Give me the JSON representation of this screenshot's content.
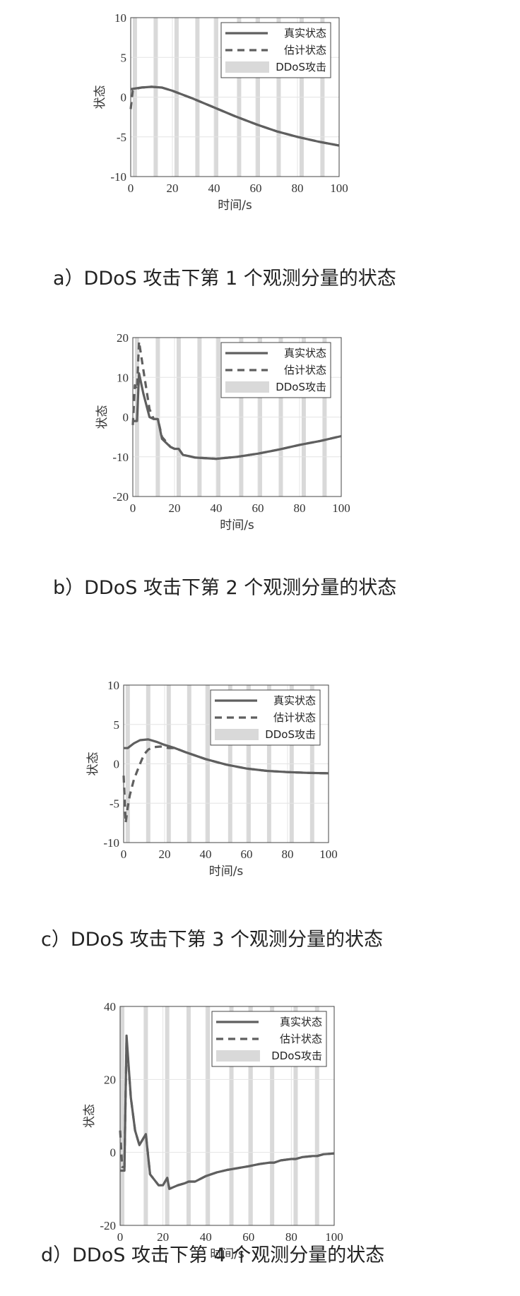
{
  "chart_data": [
    {
      "type": "line",
      "caption": "a）DDoS 攻击下第 1 个观测分量的状态",
      "xlabel": "时间/s",
      "ylabel": "状态",
      "xlim": [
        0,
        100
      ],
      "ylim": [
        -10,
        10
      ],
      "xticks": [
        "0",
        "20",
        "40",
        "60",
        "80",
        "100"
      ],
      "yticks": [
        "10",
        "5",
        "0",
        "-5",
        "-10"
      ],
      "legend": {
        "position": "top-right",
        "entries": [
          "真实状态",
          "估计状态",
          "DDoS攻击"
        ]
      },
      "attack_times": [
        2,
        12,
        22,
        32,
        41,
        52,
        61,
        71,
        82,
        92
      ],
      "series": [
        {
          "name": "真实状态",
          "style": "solid",
          "x": [
            0,
            5,
            10,
            15,
            20,
            30,
            40,
            50,
            60,
            70,
            80,
            90,
            100
          ],
          "y": [
            1.0,
            1.2,
            1.3,
            1.2,
            0.8,
            -0.2,
            -1.3,
            -2.4,
            -3.4,
            -4.3,
            -5.0,
            -5.6,
            -6.1
          ]
        },
        {
          "name": "估计状态",
          "style": "dashed",
          "x": [
            0,
            1,
            2,
            5,
            10,
            15,
            20,
            30,
            40,
            50,
            60,
            70,
            80,
            90,
            100
          ],
          "y": [
            -1.5,
            0.8,
            1.0,
            1.2,
            1.3,
            1.2,
            0.8,
            -0.2,
            -1.3,
            -2.4,
            -3.4,
            -4.3,
            -5.0,
            -5.6,
            -6.1
          ]
        }
      ]
    },
    {
      "type": "line",
      "caption": "b）DDoS 攻击下第 2 个观测分量的状态",
      "xlabel": "时间/s",
      "ylabel": "状态",
      "xlim": [
        0,
        100
      ],
      "ylim": [
        -20,
        20
      ],
      "xticks": [
        "0",
        "20",
        "40",
        "60",
        "80",
        "100"
      ],
      "yticks": [
        "20",
        "10",
        "0",
        "-10",
        "-20"
      ],
      "legend": {
        "position": "top-right",
        "entries": [
          "真实状态",
          "估计状态",
          "DDoS攻击"
        ]
      },
      "attack_times": [
        2,
        12,
        22,
        32,
        41,
        52,
        61,
        71,
        82,
        92
      ],
      "series": [
        {
          "name": "真实状态",
          "style": "solid",
          "x": [
            0,
            2,
            3,
            5,
            8,
            10,
            12,
            14,
            18,
            20,
            22,
            24,
            30,
            40,
            50,
            60,
            70,
            80,
            90,
            100
          ],
          "y": [
            -1.0,
            -1.0,
            11.0,
            6.0,
            0.0,
            -0.5,
            -0.5,
            -5.5,
            -7.5,
            -8.0,
            -8.0,
            -9.5,
            -10.2,
            -10.5,
            -10.0,
            -9.2,
            -8.2,
            -7.0,
            -6.0,
            -4.8
          ]
        },
        {
          "name": "估计状态",
          "style": "dashed",
          "x": [
            0,
            1,
            2,
            3,
            5,
            8,
            10,
            12,
            14,
            18,
            20,
            22,
            24,
            30,
            40,
            50,
            60,
            70,
            80,
            90,
            100
          ],
          "y": [
            -2.0,
            8.0,
            7.0,
            19.0,
            12.0,
            2.0,
            -0.5,
            -0.5,
            -5.0,
            -7.5,
            -8.0,
            -8.0,
            -9.5,
            -10.2,
            -10.5,
            -10.0,
            -9.2,
            -8.2,
            -7.0,
            -6.0,
            -4.8
          ]
        }
      ]
    },
    {
      "type": "line",
      "caption": "c）DDoS 攻击下第 3 个观测分量的状态",
      "xlabel": "时间/s",
      "ylabel": "状态",
      "xlim": [
        0,
        100
      ],
      "ylim": [
        -10,
        10
      ],
      "xticks": [
        "0",
        "20",
        "40",
        "60",
        "80",
        "100"
      ],
      "yticks": [
        "10",
        "5",
        "0",
        "-5",
        "-10"
      ],
      "legend": {
        "position": "top-right",
        "entries": [
          "真实状态",
          "估计状态",
          "DDoS攻击"
        ]
      },
      "attack_times": [
        2,
        12,
        22,
        32,
        41,
        52,
        61,
        71,
        82,
        92
      ],
      "series": [
        {
          "name": "真实状态",
          "style": "solid",
          "x": [
            0,
            2,
            5,
            8,
            12,
            16,
            20,
            25,
            30,
            40,
            50,
            60,
            70,
            80,
            90,
            100
          ],
          "y": [
            2.0,
            2.0,
            2.6,
            3.0,
            3.1,
            2.8,
            2.4,
            2.0,
            1.5,
            0.6,
            -0.1,
            -0.6,
            -0.9,
            -1.05,
            -1.15,
            -1.2
          ]
        },
        {
          "name": "估计状态",
          "style": "dashed",
          "x": [
            0,
            1,
            2,
            3,
            5,
            8,
            10,
            12,
            14,
            18,
            22,
            25,
            30,
            40,
            50,
            60,
            70,
            80,
            90,
            100
          ],
          "y": [
            -1.5,
            -7.5,
            -5.5,
            -4.0,
            -2.0,
            0.0,
            1.2,
            1.8,
            2.1,
            2.2,
            2.0,
            2.0,
            1.5,
            0.6,
            -0.1,
            -0.6,
            -0.9,
            -1.05,
            -1.15,
            -1.2
          ]
        }
      ]
    },
    {
      "type": "line",
      "caption": "d）DDoS 攻击下第 4 个观测分量的状态",
      "xlabel": "时间/s",
      "ylabel": "状态",
      "xlim": [
        0,
        100
      ],
      "ylim": [
        -20,
        40
      ],
      "xticks": [
        "0",
        "20",
        "40",
        "60",
        "80",
        "100"
      ],
      "yticks": [
        "40",
        "20",
        "0",
        "-20"
      ],
      "legend": {
        "position": "top-right",
        "entries": [
          "真实状态",
          "估计状态",
          "DDoS攻击"
        ]
      },
      "attack_times": [
        1,
        12,
        22,
        32,
        41,
        52,
        61,
        71,
        82,
        92
      ],
      "series": [
        {
          "name": "真实状态",
          "style": "solid",
          "x": [
            0,
            2,
            3,
            5,
            7,
            9,
            12,
            14,
            18,
            20,
            22,
            23,
            27,
            30,
            32,
            35,
            40,
            45,
            50,
            55,
            60,
            65,
            70,
            72,
            75,
            80,
            82,
            85,
            90,
            92,
            95,
            100
          ],
          "y": [
            -5.0,
            -5.0,
            32.0,
            15.0,
            6.0,
            2.0,
            5.0,
            -6.0,
            -9.0,
            -9.0,
            -7.0,
            -10.0,
            -9.0,
            -8.5,
            -8.0,
            -8.0,
            -6.5,
            -5.5,
            -4.8,
            -4.3,
            -3.8,
            -3.2,
            -2.8,
            -2.8,
            -2.2,
            -1.8,
            -1.8,
            -1.3,
            -1.0,
            -1.0,
            -0.5,
            -0.3
          ]
        },
        {
          "name": "估计状态",
          "style": "dashed",
          "x": [
            0,
            1,
            2,
            3,
            5,
            7,
            9,
            12,
            14,
            18,
            20,
            22,
            23,
            27,
            30,
            32,
            35,
            40,
            45,
            50,
            55,
            60,
            65,
            70,
            72,
            75,
            80,
            82,
            85,
            90,
            92,
            95,
            100
          ],
          "y": [
            6.0,
            -4.0,
            -4.0,
            31.0,
            15.0,
            6.0,
            2.0,
            5.0,
            -6.0,
            -9.0,
            -9.0,
            -7.0,
            -10.0,
            -9.0,
            -8.5,
            -8.0,
            -8.0,
            -6.5,
            -5.5,
            -4.8,
            -4.3,
            -3.8,
            -3.2,
            -2.8,
            -2.8,
            -2.2,
            -1.8,
            -1.8,
            -1.3,
            -1.0,
            -1.0,
            -0.5,
            -0.3
          ]
        }
      ]
    }
  ],
  "colors": {
    "line": "#5f5f5f",
    "attack_band": "#d9d9d9",
    "axis": "#444444",
    "grid": "#e4e4e4"
  }
}
